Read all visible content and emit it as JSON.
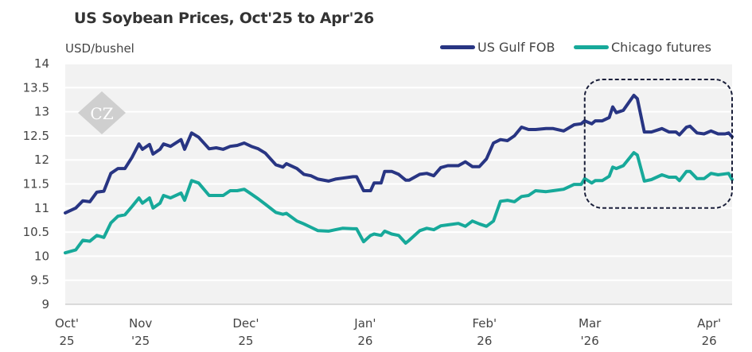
{
  "chart_data": {
    "type": "line",
    "title": "US Soybean Prices, Oct'25 to Apr'26",
    "ylabel": "USD/bushel",
    "xlabel": "",
    "ylim": [
      9,
      14
    ],
    "yticks": [
      9,
      9.5,
      10,
      10.5,
      11,
      11.5,
      12,
      12.5,
      13,
      13.5,
      14
    ],
    "ytick_labels": [
      "9",
      "9.5",
      "10",
      "10.5",
      "11",
      "11.5",
      "12",
      "12.5",
      "13",
      "13.5",
      "14"
    ],
    "xlim": [
      0,
      190
    ],
    "x_unit": "days since 1 Oct 2025 (approx.)",
    "xticks": [
      {
        "x": 0,
        "line1": "Oct'",
        "line2": "25"
      },
      {
        "x": 21,
        "line1": "Nov",
        "line2": "'25"
      },
      {
        "x": 51,
        "line1": "Dec'",
        "line2": "25"
      },
      {
        "x": 85,
        "line1": "Jan'",
        "line2": "26"
      },
      {
        "x": 119,
        "line1": "Feb'",
        "line2": "26"
      },
      {
        "x": 149,
        "line1": "Mar",
        "line2": "'26"
      },
      {
        "x": 183,
        "line1": "Apr'",
        "line2": "26"
      }
    ],
    "grid": true,
    "legend_position": "top-right",
    "x": [
      0,
      3,
      5,
      7,
      9,
      11,
      13,
      15,
      17,
      19,
      21,
      22,
      24,
      25,
      27,
      28,
      30,
      33,
      34,
      36,
      38,
      41,
      43,
      45,
      47,
      49,
      51,
      53,
      55,
      57,
      60,
      62,
      63,
      66,
      68,
      70,
      72,
      75,
      77,
      79,
      82,
      83,
      85,
      87,
      88,
      90,
      91,
      93,
      95,
      97,
      98,
      101,
      103,
      105,
      107,
      109,
      112,
      114,
      116,
      118,
      120,
      122,
      124,
      126,
      128,
      130,
      132,
      134,
      137,
      139,
      142,
      145,
      147,
      148,
      150,
      151,
      153,
      155,
      156,
      157,
      159,
      162,
      163,
      165,
      167,
      170,
      172,
      174,
      175,
      177,
      178,
      180,
      182,
      184,
      186,
      188,
      189,
      190
    ],
    "series": [
      {
        "name": "US Gulf FOB",
        "color": "#283583",
        "values": [
          10.9,
          11.0,
          11.15,
          11.13,
          11.33,
          11.35,
          11.72,
          11.82,
          11.82,
          12.05,
          12.33,
          12.22,
          12.32,
          12.12,
          12.22,
          12.33,
          12.28,
          12.42,
          12.22,
          12.56,
          12.47,
          12.23,
          12.25,
          12.22,
          12.28,
          12.3,
          12.35,
          12.28,
          12.23,
          12.14,
          11.9,
          11.85,
          11.92,
          11.82,
          11.7,
          11.67,
          11.6,
          11.56,
          11.6,
          11.62,
          11.65,
          11.65,
          11.36,
          11.36,
          11.52,
          11.52,
          11.76,
          11.76,
          11.7,
          11.58,
          11.58,
          11.7,
          11.72,
          11.67,
          11.84,
          11.88,
          11.88,
          11.96,
          11.86,
          11.86,
          12.02,
          12.35,
          12.42,
          12.4,
          12.5,
          12.68,
          12.63,
          12.63,
          12.65,
          12.65,
          12.6,
          12.73,
          12.75,
          12.81,
          12.75,
          12.81,
          12.81,
          12.88,
          13.1,
          12.98,
          13.03,
          13.34,
          13.27,
          12.58,
          12.58,
          12.65,
          12.58,
          12.58,
          12.52,
          12.68,
          12.7,
          12.56,
          12.54,
          12.6,
          12.54,
          12.54,
          12.56,
          12.48
        ]
      },
      {
        "name": "Chicago futures",
        "color": "#17A99A",
        "values": [
          10.07,
          10.13,
          10.33,
          10.31,
          10.43,
          10.39,
          10.69,
          10.83,
          10.86,
          11.03,
          11.21,
          11.1,
          11.21,
          11.0,
          11.1,
          11.26,
          11.21,
          11.31,
          11.16,
          11.57,
          11.52,
          11.26,
          11.26,
          11.26,
          11.36,
          11.36,
          11.39,
          11.29,
          11.19,
          11.08,
          10.91,
          10.87,
          10.89,
          10.73,
          10.67,
          10.6,
          10.53,
          10.52,
          10.55,
          10.58,
          10.57,
          10.57,
          10.3,
          10.43,
          10.46,
          10.43,
          10.52,
          10.46,
          10.43,
          10.27,
          10.33,
          10.53,
          10.58,
          10.55,
          10.63,
          10.65,
          10.68,
          10.62,
          10.73,
          10.67,
          10.62,
          10.73,
          11.14,
          11.16,
          11.13,
          11.24,
          11.26,
          11.36,
          11.34,
          11.36,
          11.39,
          11.49,
          11.49,
          11.61,
          11.52,
          11.57,
          11.57,
          11.66,
          11.85,
          11.82,
          11.88,
          12.15,
          12.1,
          11.56,
          11.59,
          11.69,
          11.64,
          11.64,
          11.57,
          11.76,
          11.76,
          11.61,
          11.61,
          11.72,
          11.69,
          11.71,
          11.72,
          11.59
        ]
      }
    ],
    "annotations": [
      {
        "type": "dashed-rounded-box",
        "x_range": [
          148,
          190
        ],
        "y_range": [
          11.0,
          13.67
        ]
      }
    ]
  },
  "watermark": "CZ"
}
